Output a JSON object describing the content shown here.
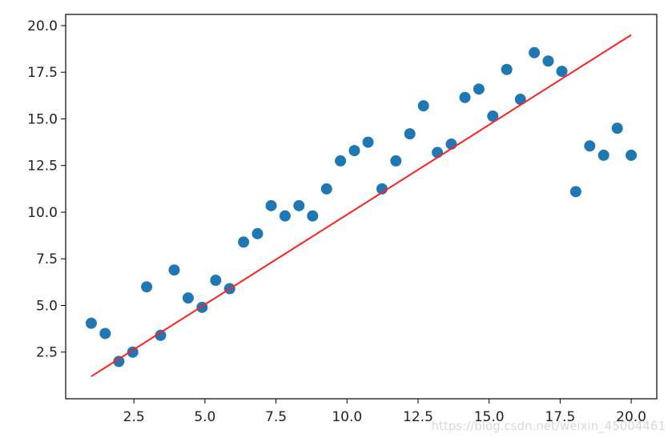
{
  "chart_data": {
    "type": "scatter",
    "title": "",
    "xlabel": "",
    "ylabel": "",
    "xlim": [
      0.1,
      20.9
    ],
    "ylim": [
      0.0,
      20.6
    ],
    "grid": false,
    "x_ticks": [
      "2.5",
      "5.0",
      "7.5",
      "10.0",
      "12.5",
      "15.0",
      "17.5",
      "20.0"
    ],
    "y_ticks": [
      "2.5",
      "5.0",
      "7.5",
      "10.0",
      "12.5",
      "15.0",
      "17.5",
      "20.0"
    ],
    "series": [
      {
        "kind": "scatter",
        "color": "#1f77b4",
        "points": [
          [
            1.0,
            4.05
          ],
          [
            1.49,
            3.5
          ],
          [
            1.97,
            2.0
          ],
          [
            2.46,
            2.5
          ],
          [
            2.95,
            6.0
          ],
          [
            3.44,
            3.4
          ],
          [
            3.92,
            6.9
          ],
          [
            4.41,
            5.4
          ],
          [
            4.9,
            4.9
          ],
          [
            5.38,
            6.35
          ],
          [
            5.87,
            5.9
          ],
          [
            6.36,
            8.4
          ],
          [
            6.85,
            8.85
          ],
          [
            7.33,
            10.35
          ],
          [
            7.82,
            9.8
          ],
          [
            8.31,
            10.35
          ],
          [
            8.79,
            9.8
          ],
          [
            9.28,
            11.25
          ],
          [
            9.77,
            12.75
          ],
          [
            10.26,
            13.3
          ],
          [
            10.74,
            13.75
          ],
          [
            11.23,
            11.25
          ],
          [
            11.72,
            12.75
          ],
          [
            12.21,
            14.2
          ],
          [
            12.69,
            15.7
          ],
          [
            13.18,
            13.2
          ],
          [
            13.67,
            13.65
          ],
          [
            14.15,
            16.15
          ],
          [
            14.64,
            16.6
          ],
          [
            15.13,
            15.15
          ],
          [
            15.62,
            17.65
          ],
          [
            16.1,
            16.05
          ],
          [
            16.59,
            18.55
          ],
          [
            17.08,
            18.1
          ],
          [
            17.56,
            17.55
          ],
          [
            18.05,
            11.1
          ],
          [
            18.54,
            13.55
          ],
          [
            19.03,
            13.05
          ],
          [
            19.51,
            14.5
          ],
          [
            20.0,
            13.05
          ]
        ]
      },
      {
        "kind": "line",
        "color": "#ff2020",
        "points": [
          [
            1.0,
            1.2
          ],
          [
            20.0,
            19.5
          ]
        ]
      }
    ]
  },
  "watermark": "https://blog.csdn.net/weixin_45004461"
}
